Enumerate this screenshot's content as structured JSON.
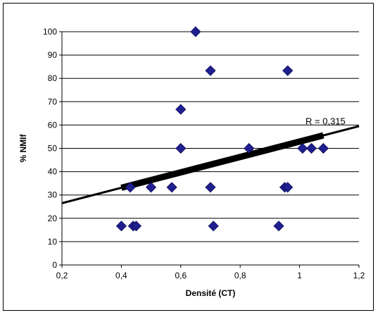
{
  "chart_data": {
    "type": "scatter",
    "title": "",
    "xlabel": "Densité (CT)",
    "ylabel": "% NMIf",
    "xlim": [
      0.2,
      1.2
    ],
    "ylim": [
      0,
      100
    ],
    "x_ticks": [
      "0,2",
      "0,4",
      "0,6",
      "0,8",
      "1",
      "1,2"
    ],
    "y_ticks": [
      "0",
      "10",
      "20",
      "30",
      "40",
      "50",
      "60",
      "70",
      "80",
      "90",
      "100"
    ],
    "grid": "horizontal",
    "legend": "none",
    "marker_color": "#1F1F8F",
    "series": [
      {
        "points": [
          {
            "x": 0.4,
            "y": 16.7
          },
          {
            "x": 0.44,
            "y": 16.7
          },
          {
            "x": 0.45,
            "y": 16.7
          },
          {
            "x": 0.43,
            "y": 33.3
          },
          {
            "x": 0.5,
            "y": 33.3
          },
          {
            "x": 0.57,
            "y": 33.3
          },
          {
            "x": 0.6,
            "y": 50.0
          },
          {
            "x": 0.6,
            "y": 66.7
          },
          {
            "x": 0.65,
            "y": 100.0
          },
          {
            "x": 0.7,
            "y": 83.3
          },
          {
            "x": 0.7,
            "y": 33.3
          },
          {
            "x": 0.71,
            "y": 16.7
          },
          {
            "x": 0.83,
            "y": 50.0
          },
          {
            "x": 0.93,
            "y": 16.7
          },
          {
            "x": 0.95,
            "y": 33.3
          },
          {
            "x": 0.96,
            "y": 33.3
          },
          {
            "x": 0.96,
            "y": 83.3
          },
          {
            "x": 1.01,
            "y": 50.0
          },
          {
            "x": 1.04,
            "y": 50.0
          },
          {
            "x": 1.08,
            "y": 50.0
          }
        ]
      }
    ],
    "trendline": {
      "x": [
        0.2,
        1.2
      ],
      "y": [
        26.5,
        59.5
      ]
    },
    "annotation": "R = 0,315",
    "annotation_point": {
      "x": 1.02,
      "y": 61.5
    }
  }
}
